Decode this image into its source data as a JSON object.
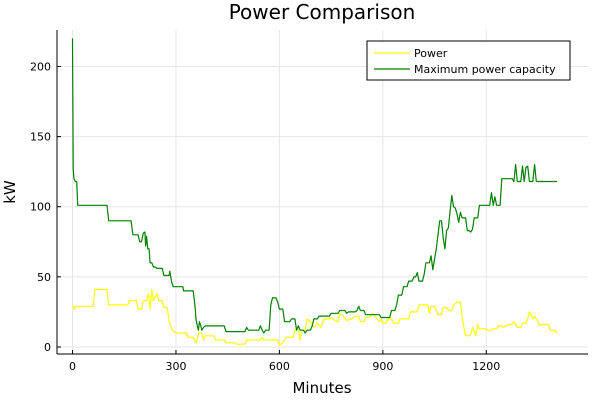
{
  "chart_data": {
    "type": "line",
    "title": "Power Comparison",
    "xlabel": "Minutes",
    "ylabel": "kW",
    "xlim": [
      -45,
      1495
    ],
    "ylim": [
      -5,
      226
    ],
    "xticks": [
      0,
      300,
      600,
      900,
      1200
    ],
    "yticks": [
      0,
      50,
      100,
      150,
      200
    ],
    "grid": true,
    "legend_position": "top-right",
    "series": [
      {
        "name": "Power",
        "color": "#ffff00",
        "points": [
          [
            0,
            30
          ],
          [
            5,
            27
          ],
          [
            10,
            29
          ],
          [
            60,
            29
          ],
          [
            65,
            41
          ],
          [
            100,
            41
          ],
          [
            105,
            30
          ],
          [
            160,
            30
          ],
          [
            165,
            33
          ],
          [
            185,
            33
          ],
          [
            190,
            27
          ],
          [
            200,
            27
          ],
          [
            205,
            33
          ],
          [
            215,
            33
          ],
          [
            220,
            38
          ],
          [
            225,
            27
          ],
          [
            230,
            41
          ],
          [
            235,
            33
          ],
          [
            245,
            38
          ],
          [
            250,
            33
          ],
          [
            260,
            33
          ],
          [
            265,
            28
          ],
          [
            275,
            28
          ],
          [
            280,
            18
          ],
          [
            285,
            15
          ],
          [
            290,
            12
          ],
          [
            300,
            10
          ],
          [
            330,
            10
          ],
          [
            335,
            7
          ],
          [
            350,
            7
          ],
          [
            355,
            4
          ],
          [
            360,
            3
          ],
          [
            365,
            10
          ],
          [
            375,
            10
          ],
          [
            380,
            5
          ],
          [
            385,
            8
          ],
          [
            410,
            8
          ],
          [
            415,
            5
          ],
          [
            440,
            5
          ],
          [
            445,
            3
          ],
          [
            470,
            3
          ],
          [
            475,
            2
          ],
          [
            500,
            2
          ],
          [
            505,
            5
          ],
          [
            545,
            5
          ],
          [
            550,
            7
          ],
          [
            555,
            5
          ],
          [
            595,
            5
          ],
          [
            600,
            1
          ],
          [
            610,
            3
          ],
          [
            620,
            7
          ],
          [
            640,
            7
          ],
          [
            645,
            12
          ],
          [
            655,
            12
          ],
          [
            660,
            5
          ],
          [
            665,
            12
          ],
          [
            675,
            12
          ],
          [
            680,
            20
          ],
          [
            690,
            18
          ],
          [
            700,
            14
          ],
          [
            710,
            17
          ],
          [
            720,
            14
          ],
          [
            730,
            20
          ],
          [
            745,
            20
          ],
          [
            750,
            21
          ],
          [
            760,
            19
          ],
          [
            770,
            18
          ],
          [
            775,
            24
          ],
          [
            785,
            22
          ],
          [
            795,
            19
          ],
          [
            810,
            20
          ],
          [
            820,
            22
          ],
          [
            830,
            22
          ],
          [
            835,
            18
          ],
          [
            845,
            18
          ],
          [
            850,
            21
          ],
          [
            860,
            21
          ],
          [
            865,
            22
          ],
          [
            870,
            24
          ],
          [
            880,
            21
          ],
          [
            890,
            18
          ],
          [
            895,
            20
          ],
          [
            900,
            17
          ],
          [
            910,
            17
          ],
          [
            915,
            20
          ],
          [
            925,
            20
          ],
          [
            930,
            17
          ],
          [
            945,
            17
          ],
          [
            950,
            20
          ],
          [
            975,
            20
          ],
          [
            980,
            25
          ],
          [
            1000,
            25
          ],
          [
            1005,
            30
          ],
          [
            1030,
            30
          ],
          [
            1035,
            24
          ],
          [
            1040,
            29
          ],
          [
            1050,
            29
          ],
          [
            1055,
            26
          ],
          [
            1060,
            23
          ],
          [
            1070,
            23
          ],
          [
            1075,
            28
          ],
          [
            1085,
            28
          ],
          [
            1090,
            26
          ],
          [
            1100,
            26
          ],
          [
            1105,
            30
          ],
          [
            1115,
            32
          ],
          [
            1125,
            32
          ],
          [
            1130,
            22
          ],
          [
            1135,
            14
          ],
          [
            1140,
            8
          ],
          [
            1150,
            8
          ],
          [
            1155,
            9
          ],
          [
            1160,
            14
          ],
          [
            1170,
            8
          ],
          [
            1175,
            16
          ],
          [
            1180,
            13
          ],
          [
            1200,
            13
          ],
          [
            1205,
            12
          ],
          [
            1215,
            12
          ],
          [
            1220,
            13
          ],
          [
            1230,
            13
          ],
          [
            1235,
            15
          ],
          [
            1245,
            15
          ],
          [
            1250,
            14
          ],
          [
            1265,
            16
          ],
          [
            1275,
            16
          ],
          [
            1280,
            18
          ],
          [
            1290,
            14
          ],
          [
            1300,
            14
          ],
          [
            1305,
            17
          ],
          [
            1315,
            17
          ],
          [
            1320,
            20
          ],
          [
            1325,
            25
          ],
          [
            1330,
            23
          ],
          [
            1335,
            20
          ],
          [
            1340,
            22
          ],
          [
            1345,
            20
          ],
          [
            1350,
            18
          ],
          [
            1355,
            15
          ],
          [
            1360,
            16
          ],
          [
            1380,
            16
          ],
          [
            1385,
            12
          ],
          [
            1400,
            12
          ],
          [
            1405,
            10
          ]
        ]
      },
      {
        "name": "Maximum power capacity",
        "color": "#008000",
        "points": [
          [
            0,
            220
          ],
          [
            2,
            128
          ],
          [
            4,
            120
          ],
          [
            8,
            118
          ],
          [
            12,
            118
          ],
          [
            15,
            101
          ],
          [
            100,
            101
          ],
          [
            105,
            90
          ],
          [
            170,
            90
          ],
          [
            175,
            80
          ],
          [
            190,
            80
          ],
          [
            195,
            75
          ],
          [
            200,
            75
          ],
          [
            205,
            81
          ],
          [
            210,
            82
          ],
          [
            212,
            72
          ],
          [
            215,
            79
          ],
          [
            218,
            70
          ],
          [
            222,
            70
          ],
          [
            225,
            60
          ],
          [
            230,
            60
          ],
          [
            235,
            57
          ],
          [
            240,
            57
          ],
          [
            245,
            56
          ],
          [
            260,
            56
          ],
          [
            265,
            51
          ],
          [
            280,
            51
          ],
          [
            282,
            54
          ],
          [
            285,
            50
          ],
          [
            288,
            46
          ],
          [
            292,
            43
          ],
          [
            320,
            43
          ],
          [
            322,
            40
          ],
          [
            350,
            40
          ],
          [
            355,
            30
          ],
          [
            358,
            20
          ],
          [
            362,
            15
          ],
          [
            365,
            12
          ],
          [
            368,
            18
          ],
          [
            372,
            15
          ],
          [
            375,
            12
          ],
          [
            380,
            14
          ],
          [
            385,
            15
          ],
          [
            440,
            15
          ],
          [
            445,
            11
          ],
          [
            500,
            11
          ],
          [
            505,
            14
          ],
          [
            510,
            12
          ],
          [
            540,
            12
          ],
          [
            545,
            15
          ],
          [
            550,
            12
          ],
          [
            555,
            10
          ],
          [
            560,
            12
          ],
          [
            570,
            12
          ],
          [
            575,
            30
          ],
          [
            580,
            35
          ],
          [
            590,
            35
          ],
          [
            595,
            32
          ],
          [
            600,
            27
          ],
          [
            610,
            27
          ],
          [
            615,
            18
          ],
          [
            630,
            18
          ],
          [
            635,
            20
          ],
          [
            645,
            20
          ],
          [
            650,
            12
          ],
          [
            655,
            15
          ],
          [
            660,
            12
          ],
          [
            670,
            12
          ],
          [
            675,
            10
          ],
          [
            680,
            12
          ],
          [
            690,
            12
          ],
          [
            695,
            15
          ],
          [
            700,
            20
          ],
          [
            710,
            20
          ],
          [
            715,
            22
          ],
          [
            745,
            22
          ],
          [
            750,
            24
          ],
          [
            770,
            24
          ],
          [
            775,
            26
          ],
          [
            790,
            26
          ],
          [
            795,
            24
          ],
          [
            800,
            25
          ],
          [
            820,
            25
          ],
          [
            825,
            26
          ],
          [
            830,
            29
          ],
          [
            835,
            26
          ],
          [
            845,
            26
          ],
          [
            850,
            23
          ],
          [
            890,
            23
          ],
          [
            895,
            21
          ],
          [
            920,
            21
          ],
          [
            925,
            26
          ],
          [
            935,
            26
          ],
          [
            940,
            30
          ],
          [
            945,
            37
          ],
          [
            955,
            37
          ],
          [
            960,
            43
          ],
          [
            970,
            43
          ],
          [
            975,
            47
          ],
          [
            985,
            47
          ],
          [
            990,
            50
          ],
          [
            995,
            50
          ],
          [
            1000,
            53
          ],
          [
            1005,
            47
          ],
          [
            1015,
            47
          ],
          [
            1020,
            52
          ],
          [
            1025,
            60
          ],
          [
            1035,
            60
          ],
          [
            1040,
            65
          ],
          [
            1045,
            55
          ],
          [
            1050,
            63
          ],
          [
            1055,
            70
          ],
          [
            1060,
            80
          ],
          [
            1065,
            90
          ],
          [
            1070,
            90
          ],
          [
            1075,
            78
          ],
          [
            1080,
            70
          ],
          [
            1085,
            83
          ],
          [
            1090,
            85
          ],
          [
            1095,
            97
          ],
          [
            1100,
            108
          ],
          [
            1105,
            100
          ],
          [
            1110,
            99
          ],
          [
            1115,
            95
          ],
          [
            1120,
            89
          ],
          [
            1125,
            96
          ],
          [
            1130,
            92
          ],
          [
            1140,
            92
          ],
          [
            1145,
            83
          ],
          [
            1150,
            83
          ],
          [
            1155,
            82
          ],
          [
            1160,
            84
          ],
          [
            1165,
            92
          ],
          [
            1175,
            92
          ],
          [
            1180,
            101
          ],
          [
            1210,
            101
          ],
          [
            1215,
            110
          ],
          [
            1220,
            101
          ],
          [
            1225,
            107
          ],
          [
            1230,
            101
          ],
          [
            1240,
            101
          ],
          [
            1245,
            120
          ],
          [
            1275,
            120
          ],
          [
            1280,
            118
          ],
          [
            1285,
            130
          ],
          [
            1290,
            118
          ],
          [
            1300,
            118
          ],
          [
            1305,
            129
          ],
          [
            1310,
            118
          ],
          [
            1315,
            128
          ],
          [
            1320,
            129
          ],
          [
            1325,
            118
          ],
          [
            1335,
            118
          ],
          [
            1340,
            130
          ],
          [
            1345,
            118
          ],
          [
            1405,
            118
          ]
        ]
      }
    ]
  }
}
